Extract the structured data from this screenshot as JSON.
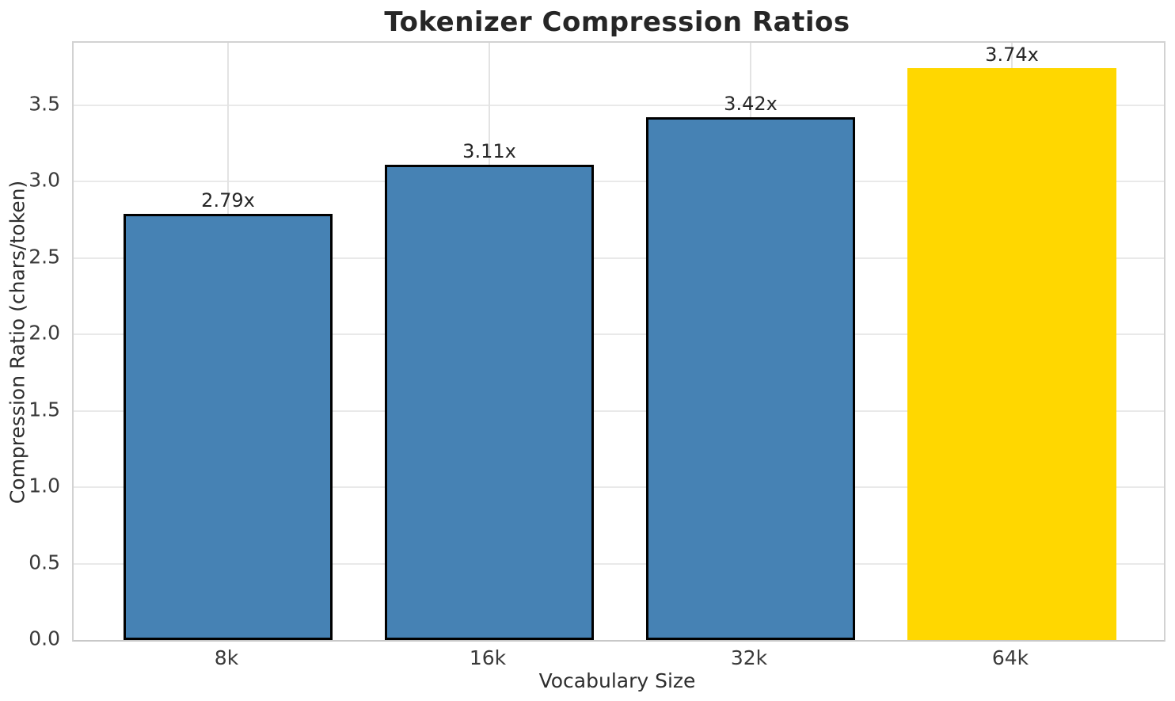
{
  "chart_data": {
    "type": "bar",
    "title": "Tokenizer Compression Ratios",
    "xlabel": "Vocabulary Size",
    "ylabel": "Compression Ratio (chars/token)",
    "categories": [
      "8k",
      "16k",
      "32k",
      "64k"
    ],
    "values": [
      2.79,
      3.11,
      3.42,
      3.74
    ],
    "bar_labels": [
      "2.79x",
      "3.11x",
      "3.42x",
      "3.74x"
    ],
    "yticks": [
      "0.0",
      "0.5",
      "1.0",
      "1.5",
      "2.0",
      "2.5",
      "3.0",
      "3.5"
    ],
    "ytick_values": [
      0.0,
      0.5,
      1.0,
      1.5,
      2.0,
      2.5,
      3.0,
      3.5
    ],
    "ylim": [
      0,
      3.907
    ],
    "grid": true,
    "legend": "none",
    "colors": {
      "bar_default": "#4682b4",
      "bar_highlight": "#ffd700",
      "bar_edge": "#000000",
      "grid_h": "#e9e9e9",
      "grid_v": "#e3e3e3",
      "spine": "#d2d2d2",
      "text": "#262626",
      "background": "#ffffff"
    },
    "bar_colors": [
      "#4682b4",
      "#4682b4",
      "#4682b4",
      "#ffd700"
    ],
    "bar_edge_widths": [
      3,
      3,
      3,
      0
    ]
  }
}
